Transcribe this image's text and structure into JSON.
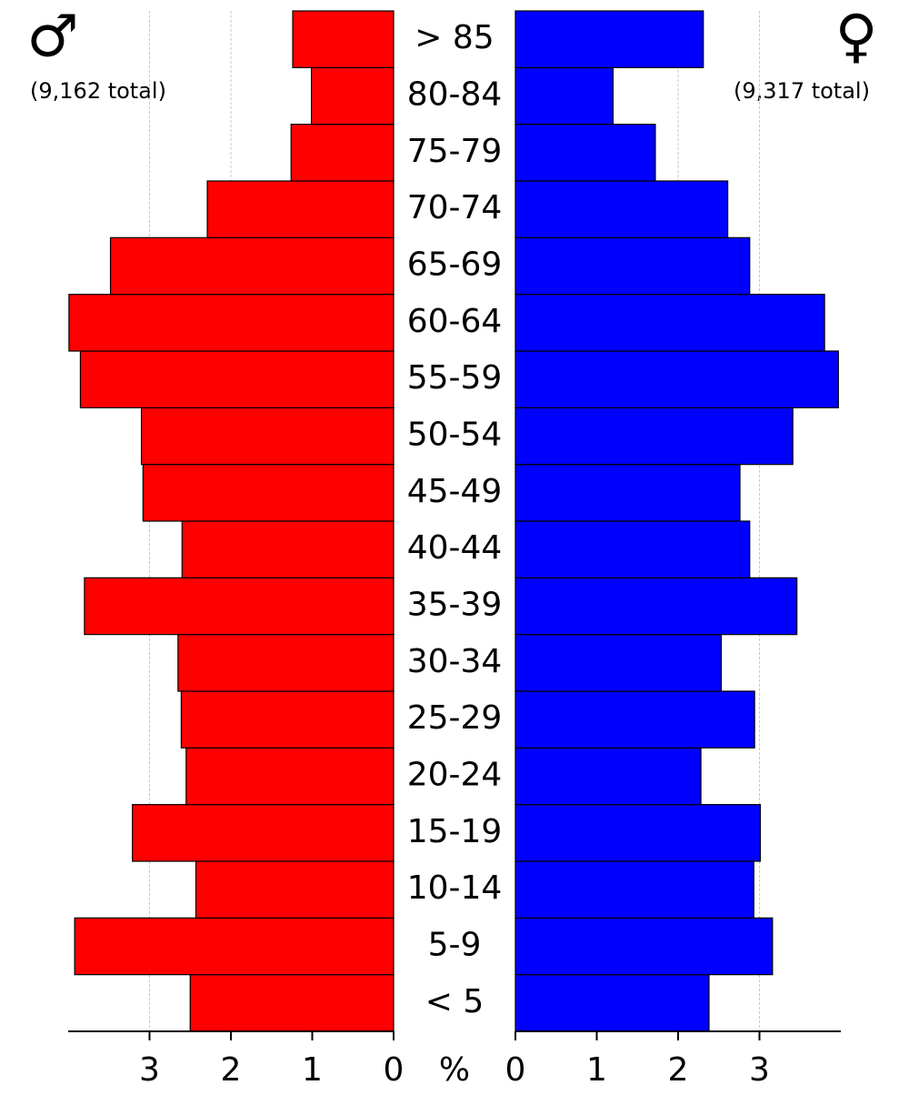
{
  "chart_data": {
    "type": "pyramid",
    "categories": [
      "< 5",
      "5-9",
      "10-14",
      "15-19",
      "20-24",
      "25-29",
      "30-34",
      "35-39",
      "40-44",
      "45-49",
      "50-54",
      "55-59",
      "60-64",
      "65-69",
      "70-74",
      "75-79",
      "80-84",
      "> 85"
    ],
    "series": [
      {
        "name": "♂",
        "total_label": "(9,162 total)",
        "color": "#ff0000",
        "values": [
          2.5,
          3.92,
          2.43,
          3.21,
          2.55,
          2.61,
          2.65,
          3.8,
          2.6,
          3.08,
          3.1,
          3.85,
          3.99,
          3.48,
          2.29,
          1.26,
          1.01,
          1.24
        ]
      },
      {
        "name": "♀",
        "total_label": "(9,317 total)",
        "color": "#0000ff",
        "values": [
          2.38,
          3.16,
          2.93,
          3.01,
          2.28,
          2.94,
          2.53,
          3.46,
          2.88,
          2.76,
          3.41,
          3.97,
          3.8,
          2.88,
          2.61,
          1.72,
          1.2,
          2.31
        ]
      }
    ],
    "xlabel": "%",
    "xlim": [
      0,
      4
    ],
    "xticks": [
      0,
      1,
      2,
      3
    ],
    "grid": true
  }
}
